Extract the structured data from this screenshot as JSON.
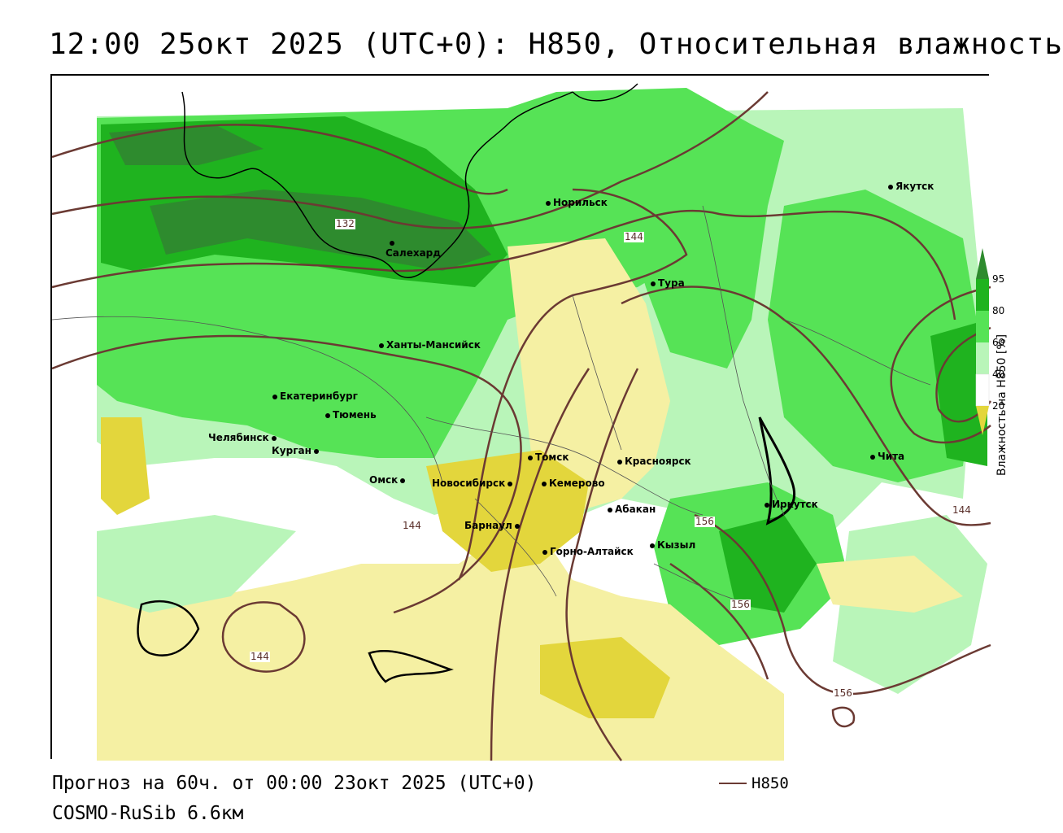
{
  "title": "12:00 25окт 2025 (UTC+0): H850, Относительная влажность",
  "footer": {
    "forecast": "Прогноз на 60ч. от 00:00 23окт 2025 (UTC+0)",
    "model": "COSMO-RuSib 6.6км",
    "contour_legend": "H850"
  },
  "legend": {
    "title": "Влажность на H850 [%]",
    "ticks": [
      "95",
      "80",
      "60",
      "40",
      "20"
    ],
    "colors": {
      "c95": "#2e8b2e",
      "c80_95": "#1fb31f",
      "c60_80": "#56e356",
      "c40_60": "#b9f5b9",
      "c20_40": "#ffffff",
      "c_below_20": "#f5f0a3",
      "c_dry": "#e3d63c"
    }
  },
  "contour_color": "#6b3a33",
  "contour_labels": [
    "132",
    "144",
    "144",
    "144",
    "144",
    "156",
    "156",
    "156"
  ],
  "cities": [
    "Норильск",
    "Якутск",
    "Салехард",
    "Тура",
    "Ханты-Мансийск",
    "Екатеринбург",
    "Тюмень",
    "Челябинск",
    "Курган",
    "Омск",
    "Новосибирск",
    "Томск",
    "Кемерово",
    "Красноярск",
    "Абакан",
    "Барнаул",
    "Горно-Алтайск",
    "Кызыл",
    "Иркутск",
    "Чита"
  ]
}
